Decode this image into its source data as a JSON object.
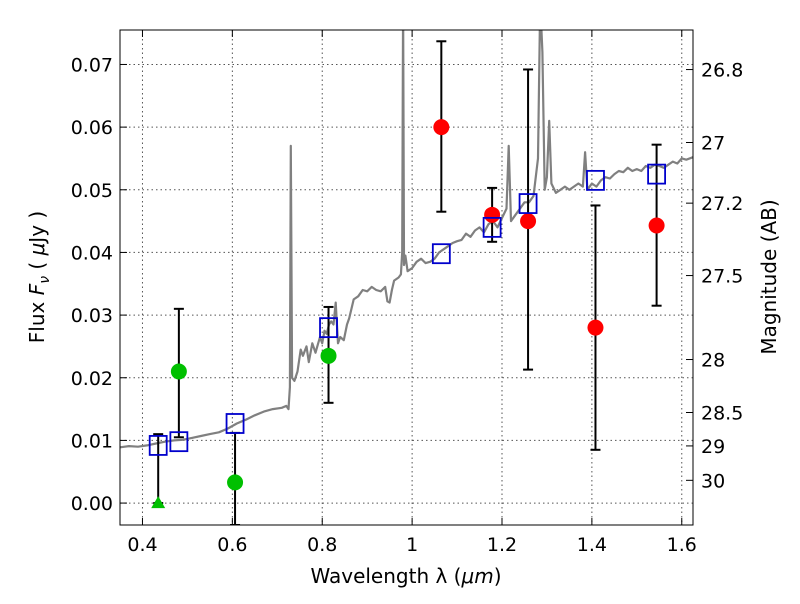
{
  "chart_data": {
    "type": "scatter",
    "title": "",
    "xlabel": {
      "main": "Wavelength  λ (",
      "unit": "μm",
      "close": ")"
    },
    "ylabel": {
      "main": "Flux  ",
      "symbol": "F",
      "sub": "ν",
      "unit_open": " ( ",
      "mu": "μ",
      "unit_close": "Jy )"
    },
    "y2label": "Magnitude (AB)",
    "xlim": [
      0.35,
      1.625
    ],
    "ylim": [
      -0.0035,
      0.0755
    ],
    "grid": true,
    "x_ticks": [
      {
        "value": 0.4,
        "label": "0.4"
      },
      {
        "value": 0.6,
        "label": "0.6"
      },
      {
        "value": 0.8,
        "label": "0.8"
      },
      {
        "value": 1.0,
        "label": "1"
      },
      {
        "value": 1.2,
        "label": "1.2"
      },
      {
        "value": 1.4,
        "label": "1.4"
      },
      {
        "value": 1.6,
        "label": "1.6"
      }
    ],
    "y_ticks": [
      {
        "value": 0.0,
        "label": "0.00"
      },
      {
        "value": 0.01,
        "label": "0.01"
      },
      {
        "value": 0.02,
        "label": "0.02"
      },
      {
        "value": 0.03,
        "label": "0.03"
      },
      {
        "value": 0.04,
        "label": "0.04"
      },
      {
        "value": 0.05,
        "label": "0.05"
      },
      {
        "value": 0.06,
        "label": "0.06"
      },
      {
        "value": 0.07,
        "label": "0.07"
      }
    ],
    "y2_ticks": [
      {
        "value": 26.8,
        "label": "26.8"
      },
      {
        "value": 27.0,
        "label": "27"
      },
      {
        "value": 27.2,
        "label": "27.2"
      },
      {
        "value": 27.5,
        "label": "27.5"
      },
      {
        "value": 28.0,
        "label": "28"
      },
      {
        "value": 28.5,
        "label": "28.5"
      },
      {
        "value": 29.0,
        "label": "29"
      },
      {
        "value": 30.0,
        "label": "30"
      }
    ],
    "mag_zero_point_ujy": 3631000000,
    "colors": {
      "model": "#808080",
      "observed_red": "#ff0000",
      "observed_green": "#00c000",
      "model_boxes": "#0000cc",
      "errorbar": "#000000",
      "grid": "#555555"
    },
    "series": [
      {
        "name": "model spectrum",
        "kind": "line",
        "points": [
          [
            0.35,
            0.0089
          ],
          [
            0.37,
            0.0091
          ],
          [
            0.39,
            0.009
          ],
          [
            0.41,
            0.0092
          ],
          [
            0.43,
            0.0095
          ],
          [
            0.45,
            0.0098
          ],
          [
            0.47,
            0.01
          ],
          [
            0.49,
            0.0101
          ],
          [
            0.51,
            0.0104
          ],
          [
            0.53,
            0.0107
          ],
          [
            0.55,
            0.011
          ],
          [
            0.57,
            0.0113
          ],
          [
            0.59,
            0.0119
          ],
          [
            0.61,
            0.0127
          ],
          [
            0.63,
            0.0133
          ],
          [
            0.65,
            0.014
          ],
          [
            0.67,
            0.0146
          ],
          [
            0.69,
            0.015
          ],
          [
            0.71,
            0.0152
          ],
          [
            0.72,
            0.0155
          ],
          [
            0.725,
            0.015
          ],
          [
            0.728,
            0.0185
          ],
          [
            0.73,
            0.057
          ],
          [
            0.733,
            0.02
          ],
          [
            0.738,
            0.0195
          ],
          [
            0.745,
            0.021
          ],
          [
            0.752,
            0.0245
          ],
          [
            0.757,
            0.0235
          ],
          [
            0.765,
            0.025
          ],
          [
            0.77,
            0.0225
          ],
          [
            0.778,
            0.0255
          ],
          [
            0.785,
            0.024
          ],
          [
            0.795,
            0.0265
          ],
          [
            0.8,
            0.0255
          ],
          [
            0.805,
            0.0275
          ],
          [
            0.81,
            0.027
          ],
          [
            0.815,
            0.0285
          ],
          [
            0.82,
            0.029
          ],
          [
            0.825,
            0.0285
          ],
          [
            0.83,
            0.032
          ],
          [
            0.835,
            0.0255
          ],
          [
            0.84,
            0.0265
          ],
          [
            0.848,
            0.026
          ],
          [
            0.855,
            0.0285
          ],
          [
            0.86,
            0.0295
          ],
          [
            0.87,
            0.0325
          ],
          [
            0.88,
            0.033
          ],
          [
            0.89,
            0.034
          ],
          [
            0.9,
            0.0338
          ],
          [
            0.91,
            0.0345
          ],
          [
            0.92,
            0.034
          ],
          [
            0.93,
            0.0338
          ],
          [
            0.94,
            0.0345
          ],
          [
            0.945,
            0.0322
          ],
          [
            0.95,
            0.032
          ],
          [
            0.955,
            0.034
          ],
          [
            0.96,
            0.0355
          ],
          [
            0.97,
            0.036
          ],
          [
            0.975,
            0.0365
          ],
          [
            0.978,
            0.04
          ],
          [
            0.98,
            0.08
          ],
          [
            0.982,
            0.038
          ],
          [
            0.985,
            0.0395
          ],
          [
            0.99,
            0.037
          ],
          [
            1.0,
            0.0375
          ],
          [
            1.01,
            0.0385
          ],
          [
            1.02,
            0.039
          ],
          [
            1.03,
            0.0383
          ],
          [
            1.04,
            0.0385
          ],
          [
            1.05,
            0.039
          ],
          [
            1.06,
            0.04
          ],
          [
            1.07,
            0.0405
          ],
          [
            1.08,
            0.041
          ],
          [
            1.09,
            0.0415
          ],
          [
            1.1,
            0.0418
          ],
          [
            1.11,
            0.042
          ],
          [
            1.12,
            0.043
          ],
          [
            1.13,
            0.0425
          ],
          [
            1.14,
            0.0435
          ],
          [
            1.15,
            0.044
          ],
          [
            1.16,
            0.0432
          ],
          [
            1.17,
            0.0445
          ],
          [
            1.18,
            0.045
          ],
          [
            1.19,
            0.044
          ],
          [
            1.2,
            0.0455
          ],
          [
            1.21,
            0.047
          ],
          [
            1.215,
            0.057
          ],
          [
            1.22,
            0.045
          ],
          [
            1.23,
            0.046
          ],
          [
            1.24,
            0.047
          ],
          [
            1.25,
            0.048
          ],
          [
            1.26,
            0.048
          ],
          [
            1.27,
            0.049
          ],
          [
            1.28,
            0.055
          ],
          [
            1.285,
            0.08
          ],
          [
            1.29,
            0.072
          ],
          [
            1.295,
            0.05
          ],
          [
            1.3,
            0.052
          ],
          [
            1.305,
            0.061
          ],
          [
            1.31,
            0.051
          ],
          [
            1.32,
            0.0495
          ],
          [
            1.33,
            0.05
          ],
          [
            1.34,
            0.0505
          ],
          [
            1.35,
            0.05
          ],
          [
            1.36,
            0.0505
          ],
          [
            1.37,
            0.051
          ],
          [
            1.38,
            0.0505
          ],
          [
            1.385,
            0.056
          ],
          [
            1.39,
            0.05
          ],
          [
            1.4,
            0.051
          ],
          [
            1.41,
            0.0505
          ],
          [
            1.42,
            0.0515
          ],
          [
            1.43,
            0.052
          ],
          [
            1.44,
            0.0518
          ],
          [
            1.45,
            0.0525
          ],
          [
            1.46,
            0.053
          ],
          [
            1.47,
            0.0528
          ],
          [
            1.48,
            0.0535
          ],
          [
            1.49,
            0.053
          ],
          [
            1.5,
            0.0533
          ],
          [
            1.51,
            0.053
          ],
          [
            1.52,
            0.0538
          ],
          [
            1.53,
            0.0535
          ],
          [
            1.54,
            0.054
          ],
          [
            1.55,
            0.0538
          ],
          [
            1.56,
            0.0535
          ],
          [
            1.57,
            0.054
          ],
          [
            1.58,
            0.0545
          ],
          [
            1.59,
            0.0542
          ],
          [
            1.6,
            0.055
          ],
          [
            1.61,
            0.0548
          ],
          [
            1.625,
            0.0552
          ]
        ]
      },
      {
        "name": "observed flux (red)",
        "kind": "points_with_errors",
        "marker": "circle",
        "points": [
          {
            "x": 1.065,
            "y": 0.06,
            "ylo": 0.0465,
            "yhi": 0.0737
          },
          {
            "x": 1.178,
            "y": 0.046,
            "ylo": 0.0417,
            "yhi": 0.0503
          },
          {
            "x": 1.258,
            "y": 0.045,
            "ylo": 0.0213,
            "yhi": 0.0692
          },
          {
            "x": 1.408,
            "y": 0.028,
            "ylo": 0.0085,
            "yhi": 0.0475
          },
          {
            "x": 1.544,
            "y": 0.0443,
            "ylo": 0.0315,
            "yhi": 0.0572
          }
        ]
      },
      {
        "name": "observed flux (green)",
        "kind": "points_with_errors",
        "marker": "circle",
        "points": [
          {
            "x": 0.481,
            "y": 0.021,
            "ylo": 0.0105,
            "yhi": 0.031
          },
          {
            "x": 0.606,
            "y": 0.0033,
            "ylo": -0.0035,
            "yhi": 0.0112
          },
          {
            "x": 0.814,
            "y": 0.0235,
            "ylo": 0.016,
            "yhi": 0.0313
          }
        ]
      },
      {
        "name": "upper limit (green triangle)",
        "kind": "points_with_errors",
        "marker": "triangle",
        "points": [
          {
            "x": 0.435,
            "y": 0.0,
            "ylo": 0.0,
            "yhi": 0.011
          }
        ]
      },
      {
        "name": "model photometry",
        "kind": "points",
        "marker": "square",
        "points": [
          {
            "x": 0.435,
            "y": 0.0092
          },
          {
            "x": 0.481,
            "y": 0.0098
          },
          {
            "x": 0.606,
            "y": 0.0127
          },
          {
            "x": 0.814,
            "y": 0.028
          },
          {
            "x": 1.065,
            "y": 0.0398
          },
          {
            "x": 1.178,
            "y": 0.044
          },
          {
            "x": 1.258,
            "y": 0.0478
          },
          {
            "x": 1.408,
            "y": 0.0515
          },
          {
            "x": 1.544,
            "y": 0.0525
          }
        ]
      }
    ]
  }
}
